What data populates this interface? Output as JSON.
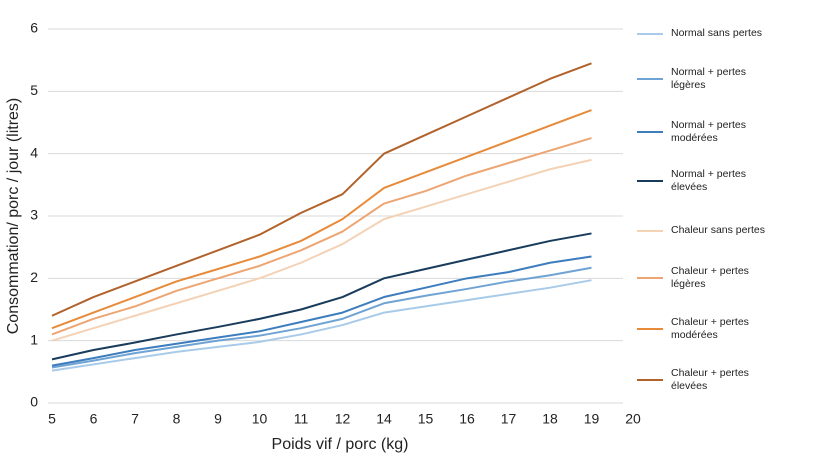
{
  "chart_data": {
    "type": "line",
    "xlabel": "Poids vif / porc (kg)",
    "ylabel": "Consommation/ porc / jour (litres)",
    "categories": [
      "5",
      "6",
      "7",
      "8",
      "9",
      "10",
      "11",
      "12",
      "14",
      "15",
      "16",
      "17",
      "18",
      "19",
      "20"
    ],
    "ylim": [
      0,
      6
    ],
    "yticks": [
      0,
      1,
      2,
      3,
      4,
      5,
      6
    ],
    "grid": true,
    "series": [
      {
        "name": "Normal sans pertes",
        "color": "#a9cbe9",
        "values": [
          0.52,
          0.62,
          0.72,
          0.82,
          0.9,
          0.98,
          1.1,
          1.25,
          1.45,
          1.55,
          1.65,
          1.75,
          1.85,
          1.97,
          null
        ]
      },
      {
        "name": "Normal + pertes légères",
        "color": "#6fa3d3",
        "values": [
          0.57,
          0.68,
          0.8,
          0.9,
          1.0,
          1.08,
          1.2,
          1.35,
          1.6,
          1.72,
          1.83,
          1.95,
          2.05,
          2.17,
          null
        ]
      },
      {
        "name": "Normal + pertes modérées",
        "color": "#3d7dbd",
        "values": [
          0.6,
          0.72,
          0.85,
          0.95,
          1.05,
          1.15,
          1.3,
          1.45,
          1.7,
          1.85,
          2.0,
          2.1,
          2.25,
          2.35,
          null
        ]
      },
      {
        "name": "Normal + pertes élevées",
        "color": "#193c5c",
        "values": [
          0.7,
          0.85,
          0.97,
          1.1,
          1.22,
          1.35,
          1.5,
          1.7,
          2.0,
          2.15,
          2.3,
          2.45,
          2.6,
          2.72,
          null
        ]
      },
      {
        "name": "Chaleur sans pertes",
        "color": "#f3d2b6",
        "values": [
          1.0,
          1.2,
          1.4,
          1.6,
          1.8,
          2.0,
          2.25,
          2.55,
          2.95,
          3.15,
          3.35,
          3.55,
          3.75,
          3.9,
          null
        ]
      },
      {
        "name": "Chaleur + pertes légères",
        "color": "#eda673",
        "values": [
          1.1,
          1.35,
          1.55,
          1.8,
          2.0,
          2.2,
          2.45,
          2.75,
          3.2,
          3.4,
          3.65,
          3.85,
          4.05,
          4.25,
          null
        ]
      },
      {
        "name": "Chaleur + pertes modérées",
        "color": "#e78a3a",
        "values": [
          1.2,
          1.45,
          1.7,
          1.95,
          2.15,
          2.35,
          2.6,
          2.95,
          3.45,
          3.7,
          3.95,
          4.2,
          4.45,
          4.7,
          null
        ]
      },
      {
        "name": "Chaleur + pertes élevées",
        "color": "#b1622b",
        "values": [
          1.4,
          1.7,
          1.95,
          2.2,
          2.45,
          2.7,
          3.05,
          3.35,
          4.0,
          4.3,
          4.6,
          4.9,
          5.2,
          5.45,
          null
        ]
      }
    ]
  }
}
